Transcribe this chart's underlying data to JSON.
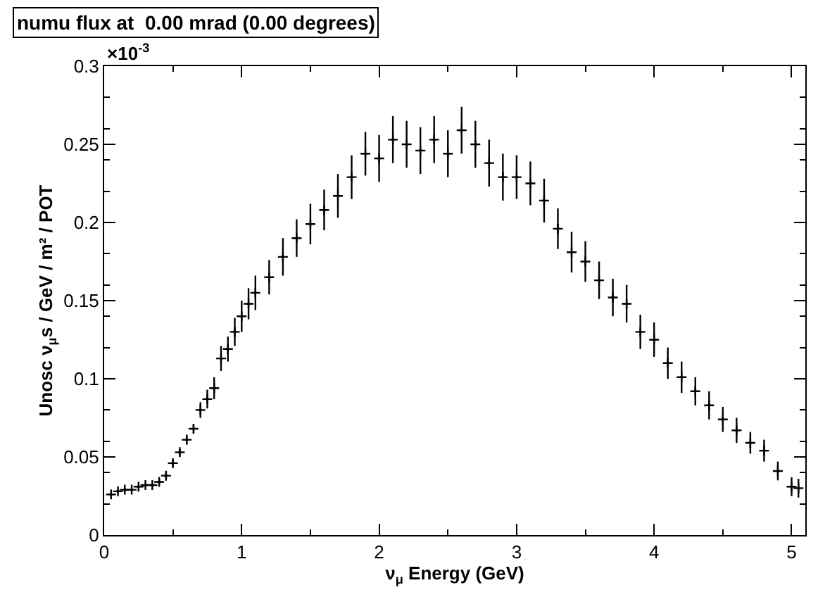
{
  "chart_data": {
    "type": "scatter",
    "title": "numu flux at  0.00 mrad (0.00 degrees)",
    "xlabel": "ν$_{μ}$ Energy (GeV)",
    "ylabel": "Unosc ν$_{μ}$s / GeV / m² / POT",
    "annotations": [
      "×10$^{-3}$"
    ],
    "marker": "cross",
    "xlim": [
      0,
      5.1
    ],
    "xticks": [
      0,
      1,
      2,
      3,
      4,
      5
    ],
    "ylim": [
      0,
      0.3
    ],
    "yticks": [
      0,
      0.05,
      0.1,
      0.15,
      0.2,
      0.25,
      0.3
    ],
    "series": [
      {
        "color": "#000000",
        "x": [
          0.05,
          0.1,
          0.15,
          0.2,
          0.25,
          0.3,
          0.35,
          0.4,
          0.45,
          0.5,
          0.55,
          0.6,
          0.65,
          0.7,
          0.75,
          0.8,
          0.85,
          0.9,
          0.95,
          1.0,
          1.05,
          1.1,
          1.2,
          1.3,
          1.4,
          1.5,
          1.6,
          1.7,
          1.8,
          1.9,
          2.0,
          2.1,
          2.2,
          2.3,
          2.4,
          2.5,
          2.6,
          2.7,
          2.8,
          2.9,
          3.0,
          3.1,
          3.2,
          3.3,
          3.4,
          3.5,
          3.6,
          3.7,
          3.8,
          3.9,
          4.0,
          4.1,
          4.2,
          4.3,
          4.4,
          4.5,
          4.6,
          4.7,
          4.8,
          4.9,
          5.0,
          5.05
        ],
        "values": [
          0.026,
          0.028,
          0.029,
          0.029,
          0.031,
          0.032,
          0.032,
          0.034,
          0.038,
          0.046,
          0.053,
          0.061,
          0.068,
          0.08,
          0.087,
          0.094,
          0.113,
          0.119,
          0.13,
          0.14,
          0.148,
          0.155,
          0.165,
          0.178,
          0.19,
          0.199,
          0.208,
          0.217,
          0.229,
          0.244,
          0.241,
          0.253,
          0.25,
          0.246,
          0.253,
          0.244,
          0.259,
          0.25,
          0.238,
          0.229,
          0.229,
          0.225,
          0.214,
          0.196,
          0.181,
          0.175,
          0.163,
          0.152,
          0.148,
          0.13,
          0.125,
          0.11,
          0.101,
          0.092,
          0.083,
          0.074,
          0.067,
          0.059,
          0.054,
          0.041,
          0.031,
          0.03
        ],
        "errors": [
          0.001,
          0.001,
          0.001,
          0.001,
          0.001,
          0.001,
          0.001,
          0.002,
          0.002,
          0.002,
          0.002,
          0.003,
          0.003,
          0.005,
          0.006,
          0.007,
          0.008,
          0.008,
          0.009,
          0.01,
          0.01,
          0.011,
          0.011,
          0.012,
          0.012,
          0.013,
          0.013,
          0.014,
          0.014,
          0.014,
          0.015,
          0.015,
          0.015,
          0.015,
          0.015,
          0.015,
          0.015,
          0.015,
          0.015,
          0.015,
          0.014,
          0.014,
          0.014,
          0.013,
          0.013,
          0.013,
          0.012,
          0.012,
          0.012,
          0.011,
          0.011,
          0.01,
          0.01,
          0.009,
          0.009,
          0.008,
          0.008,
          0.007,
          0.007,
          0.006,
          0.006,
          0.006
        ],
        "xerrors": [
          0.0125,
          0.0125,
          0.0125,
          0.0125,
          0.0125,
          0.0125,
          0.0125,
          0.0125,
          0.0125,
          0.0125,
          0.0125,
          0.0125,
          0.0125,
          0.0125,
          0.0125,
          0.0125,
          0.0125,
          0.0125,
          0.0125,
          0.0125,
          0.0125,
          0.0125,
          0.0125,
          0.0125,
          0.0125,
          0.0125,
          0.0125,
          0.0125,
          0.0125,
          0.0125,
          0.0125,
          0.0125,
          0.0125,
          0.0125,
          0.0125,
          0.0125,
          0.0125,
          0.0125,
          0.0125,
          0.0125,
          0.0125,
          0.0125,
          0.0125,
          0.0125,
          0.0125,
          0.0125,
          0.0125,
          0.0125,
          0.0125,
          0.0125,
          0.0125,
          0.0125,
          0.0125,
          0.0125,
          0.0125,
          0.0125,
          0.0125,
          0.0125,
          0.0125,
          0.0125,
          0.0125,
          0.0125
        ]
      }
    ]
  }
}
